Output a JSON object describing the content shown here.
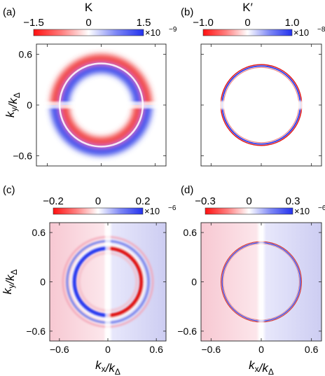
{
  "chart_data": [
    {
      "type": "heatmap",
      "panel": "(a)",
      "title": "K",
      "colorbar": {
        "ticks": [
          "−1.5",
          "0",
          "1.5"
        ],
        "min": -1.5e-09,
        "max": 1.5e-09,
        "exponent": "×10",
        "power": "−9"
      },
      "xticks": [],
      "yticks": [
        "0.6",
        "0",
        "−0.6"
      ],
      "xlim": [
        -0.72,
        0.72
      ],
      "ylim": [
        -0.72,
        0.72
      ],
      "xlabel": "",
      "ylabel": "k_y/k_Δ",
      "features": {
        "ring_radius": 0.47,
        "ring_width": 0.05,
        "upper_half": "red outside / blue inside",
        "lower_half": "blue outside / red inside"
      }
    },
    {
      "type": "heatmap",
      "panel": "(b)",
      "title": "K′",
      "colorbar": {
        "ticks": [
          "−1.0",
          "0",
          "1.0"
        ],
        "min": -1e-08,
        "max": 1e-08,
        "exponent": "×10",
        "power": "−8"
      },
      "xticks": [],
      "yticks": [],
      "xlim": [
        -0.72,
        0.72
      ],
      "ylim": [
        -0.72,
        0.72
      ],
      "xlabel": "",
      "ylabel": "",
      "features": {
        "ring_radius": 0.47,
        "ring_width": 0.012
      }
    },
    {
      "type": "heatmap",
      "panel": "(c)",
      "title": "",
      "colorbar": {
        "ticks": [
          "−0.2",
          "0",
          "0.2"
        ],
        "min": -2e-07,
        "max": 2e-07,
        "exponent": "×10",
        "power": "−6"
      },
      "xticks": [
        "−0.6",
        "0",
        "0.6"
      ],
      "yticks": [
        "0.6",
        "0",
        "−0.6"
      ],
      "xlim": [
        -0.72,
        0.72
      ],
      "ylim": [
        -0.72,
        0.72
      ],
      "xlabel": "k_x/k_Δ",
      "ylabel": "k_y/k_Δ",
      "features": {
        "ring_radius": 0.47,
        "background": "left pink / right lavender"
      }
    },
    {
      "type": "heatmap",
      "panel": "(d)",
      "title": "",
      "colorbar": {
        "ticks": [
          "−0.3",
          "0",
          "0.3"
        ],
        "min": -3e-07,
        "max": 3e-07,
        "exponent": "×10",
        "power": "−6"
      },
      "xticks": [
        "−0.6",
        "0",
        "0.6"
      ],
      "yticks": [
        "0.6",
        "0",
        "−0.6"
      ],
      "xlim": [
        -0.72,
        0.72
      ],
      "ylim": [
        -0.72,
        0.72
      ],
      "xlabel": "k_x/k_Δ",
      "ylabel": "",
      "features": {
        "ring_radius": 0.47,
        "background": "left pink / right lavender"
      }
    }
  ],
  "colors": {
    "negative": "#ff1a1a",
    "zero": "#ffffff",
    "positive": "#2a3cf0"
  }
}
